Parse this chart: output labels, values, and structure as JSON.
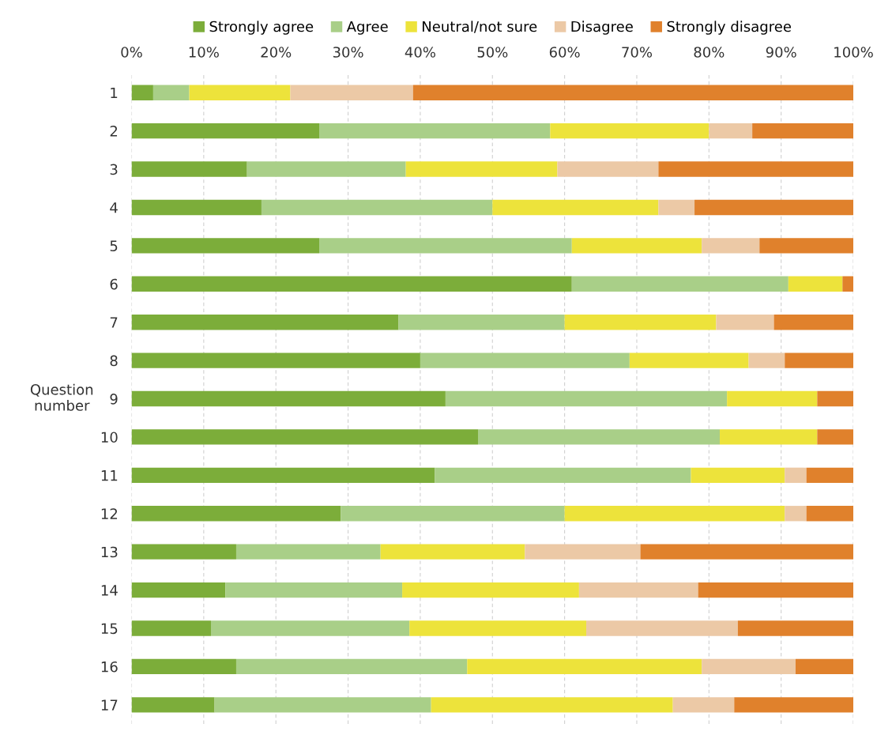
{
  "chart_data": {
    "type": "bar",
    "orientation": "horizontal",
    "stacked": true,
    "ylabel": "Question number",
    "categories": [
      "1",
      "2",
      "3",
      "4",
      "5",
      "6",
      "7",
      "8",
      "9",
      "10",
      "11",
      "12",
      "13",
      "14",
      "15",
      "16",
      "17"
    ],
    "series": [
      {
        "name": "Strongly agree",
        "color": "#7cad3a",
        "values": [
          3,
          26,
          16,
          18,
          26,
          61,
          37,
          40,
          43.5,
          48,
          42,
          29,
          14.5,
          13,
          11,
          14.5,
          11.5
        ]
      },
      {
        "name": "Agree",
        "color": "#a9cf88",
        "values": [
          5,
          32,
          22,
          32,
          35,
          30,
          23,
          29,
          39,
          33.5,
          35.5,
          31,
          20,
          24.5,
          27.5,
          32,
          30
        ]
      },
      {
        "name": "Neutral/not sure",
        "color": "#ede33b",
        "values": [
          14,
          22,
          21,
          23,
          18,
          7.5,
          21,
          16.5,
          12.5,
          13.5,
          13,
          30.5,
          20,
          24.5,
          24.5,
          32.5,
          33.5
        ]
      },
      {
        "name": "Disagree",
        "color": "#ecc9a6",
        "values": [
          17,
          6,
          14,
          5,
          8,
          0,
          8,
          5,
          0,
          0,
          3,
          3,
          16,
          16.5,
          21,
          13,
          8.5
        ]
      },
      {
        "name": "Strongly disagree",
        "color": "#e0812c",
        "values": [
          61,
          14,
          27,
          22,
          13,
          1.5,
          11,
          9.5,
          5,
          5,
          6.5,
          6.5,
          29.5,
          21.5,
          16,
          8,
          16.5
        ]
      }
    ],
    "xlim": [
      0,
      100
    ],
    "xticks": [
      {
        "value": 0,
        "label": "0%"
      },
      {
        "value": 10,
        "label": "10%"
      },
      {
        "value": 20,
        "label": "20%"
      },
      {
        "value": 30,
        "label": "30%"
      },
      {
        "value": 40,
        "label": "40%"
      },
      {
        "value": 50,
        "label": "50%"
      },
      {
        "value": 60,
        "label": "60%"
      },
      {
        "value": 70,
        "label": "70%"
      },
      {
        "value": 80,
        "label": "80%"
      },
      {
        "value": 90,
        "label": "90%"
      },
      {
        "value": 100,
        "label": "100%"
      }
    ],
    "grid": "x",
    "legend": "top"
  }
}
